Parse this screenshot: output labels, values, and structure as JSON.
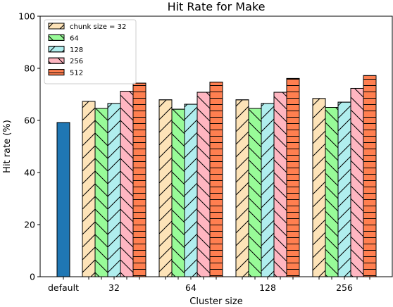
{
  "chart_data": {
    "type": "bar",
    "title": "Hit Rate for Make",
    "xlabel": "Cluster size",
    "ylabel": "Hit rate (%)",
    "ylim": [
      0,
      100
    ],
    "yticks": [
      0,
      20,
      40,
      60,
      80,
      100
    ],
    "legend_placement": "top-left",
    "default": {
      "label": "default",
      "value": 59.2,
      "color": "#1f77b4"
    },
    "categories": [
      "32",
      "64",
      "128",
      "256"
    ],
    "series": [
      {
        "name": "chunk size = 32",
        "color": "#fde3b8",
        "hatch": "diag-up",
        "values": [
          67.3,
          67.9,
          67.9,
          68.4
        ]
      },
      {
        "name": "64",
        "color": "#98fb98",
        "hatch": "diag-down",
        "values": [
          64.6,
          64.3,
          64.6,
          65.0
        ]
      },
      {
        "name": "128",
        "color": "#b0eeee",
        "hatch": "diag-up",
        "values": [
          66.5,
          66.2,
          66.5,
          67.0
        ]
      },
      {
        "name": "256",
        "color": "#ffb6c1",
        "hatch": "diag-down",
        "values": [
          71.2,
          70.8,
          70.8,
          72.3
        ]
      },
      {
        "name": "512",
        "color": "#ff7f50",
        "hatch": "horizontal",
        "values": [
          74.3,
          74.7,
          76.1,
          77.2
        ]
      }
    ]
  }
}
